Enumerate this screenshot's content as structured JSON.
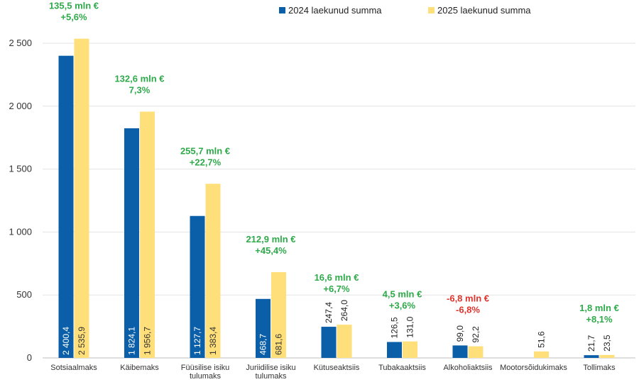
{
  "chart_data": {
    "type": "bar",
    "categories": [
      [
        "Sotsiaalmaks"
      ],
      [
        "Käibemaks"
      ],
      [
        "Füüsilise isiku",
        "tulumaks"
      ],
      [
        "Juriidilise isiku",
        "tulumaks"
      ],
      [
        "Kütuseaktsiis"
      ],
      [
        "Tubakaaktsiis"
      ],
      [
        "Alkoholiaktsiis"
      ],
      [
        "Mootorsõidukimaks"
      ],
      [
        "Tollimaks"
      ]
    ],
    "series": [
      {
        "name": "2024 laekunud summa",
        "color": "#0b5fa8",
        "values": [
          2400.4,
          1824.1,
          1127.7,
          468.7,
          247.4,
          126.5,
          99.0,
          null,
          21.7
        ],
        "labels": [
          "2 400,4",
          "1 824,1",
          "1 127,7",
          "468,7",
          "247,4",
          "126,5",
          "99,0",
          "",
          "21,7"
        ]
      },
      {
        "name": "2025 laekunud summa",
        "color": "#ffdf7a",
        "values": [
          2535.9,
          1956.7,
          1383.4,
          681.6,
          264.0,
          131.0,
          92.2,
          51.6,
          23.5
        ],
        "labels": [
          "2 535,9",
          "1 956,7",
          "1 383,4",
          "681,6",
          "264,0",
          "131,0",
          "92,2",
          "51,6",
          "23,5"
        ]
      }
    ],
    "annotations": [
      {
        "line1": "135,5 mln €",
        "line2": "+5,6%",
        "color": "#2eaa4a"
      },
      {
        "line1": "132,6 mln €",
        "line2": "7,3%",
        "color": "#2eaa4a"
      },
      {
        "line1": "255,7 mln €",
        "line2": "+22,7%",
        "color": "#2eaa4a"
      },
      {
        "line1": "212,9 mln €",
        "line2": "+45,4%",
        "color": "#2eaa4a"
      },
      {
        "line1": "16,6 mln €",
        "line2": "+6,7%",
        "color": "#2eaa4a"
      },
      {
        "line1": "4,5 mln €",
        "line2": "+3,6%",
        "color": "#2eaa4a"
      },
      {
        "line1": "-6,8 mln €",
        "line2": "-6,8%",
        "color": "#e0322b"
      },
      {
        "line1": "",
        "line2": "",
        "color": "#2eaa4a"
      },
      {
        "line1": "1,8 mln €",
        "line2": "+8,1%",
        "color": "#2eaa4a"
      }
    ],
    "yticks": [
      0,
      500,
      1000,
      1500,
      2000,
      2500
    ],
    "ytick_labels": [
      "0",
      "500",
      "1 000",
      "1 500",
      "2 000",
      "2 500"
    ],
    "ylim": [
      0,
      2500
    ],
    "grid": true,
    "legend_position": "top-center",
    "title": "",
    "xlabel": "",
    "ylabel": ""
  }
}
